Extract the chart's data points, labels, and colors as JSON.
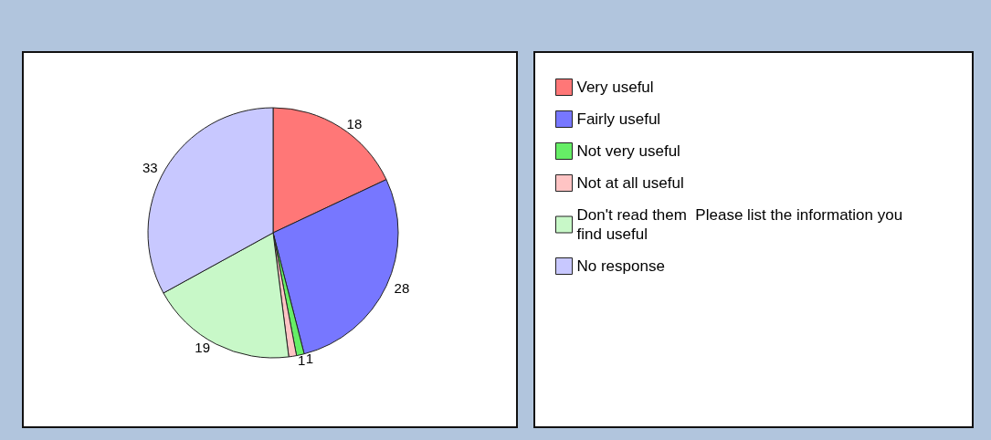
{
  "chart_data": {
    "type": "pie",
    "categories": [
      "Very useful",
      "Fairly useful",
      "Not very useful",
      "Not at all useful",
      "Don't read them  Please list the information you find useful",
      "No response"
    ],
    "values": [
      18,
      28,
      1,
      1,
      19,
      33
    ],
    "colors": [
      "#ff7777",
      "#7777ff",
      "#66ee66",
      "#ffc4c4",
      "#c8f8c8",
      "#c8c8ff"
    ],
    "data_labels": true,
    "legend": "right"
  }
}
